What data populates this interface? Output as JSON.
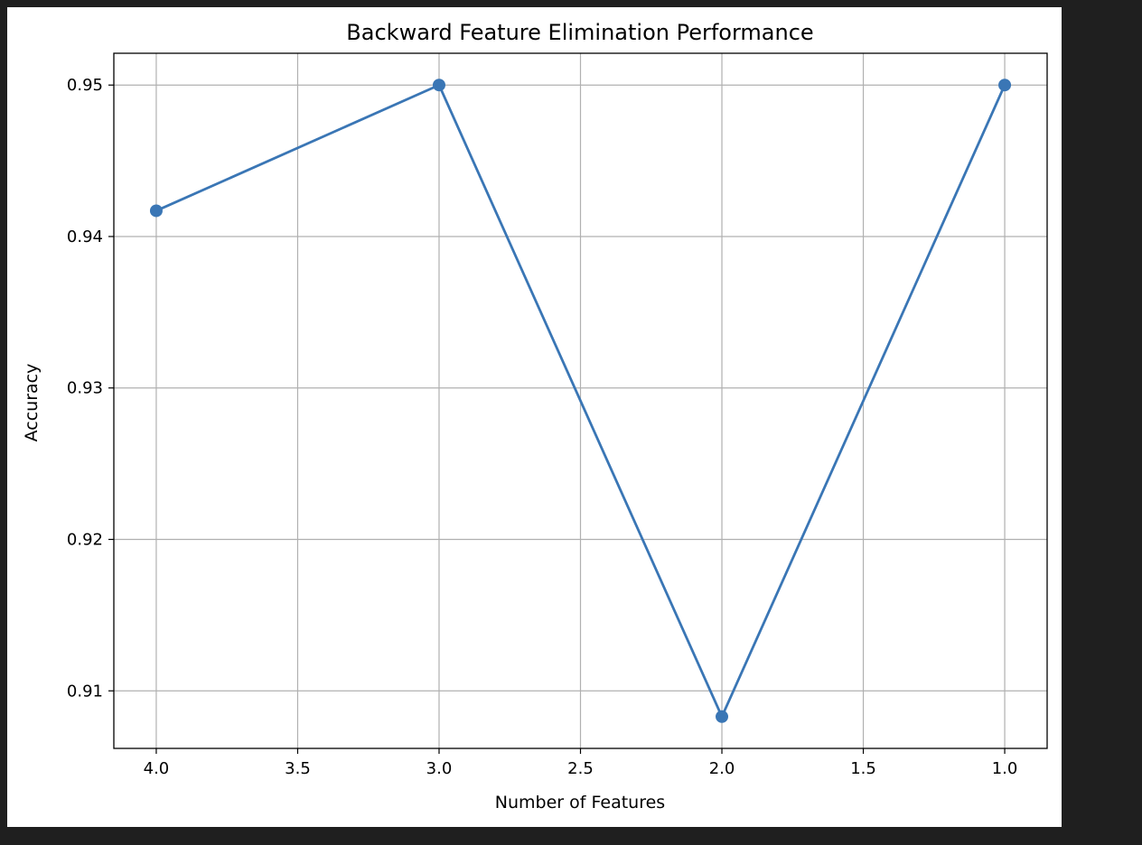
{
  "colors": {
    "background": "#1f1f1f",
    "figure": "#ffffff",
    "series": "#3a76b5",
    "grid": "#b0b0b0"
  },
  "chart_data": {
    "type": "line",
    "title": "Backward Feature Elimination Performance",
    "xlabel": "Number of Features",
    "ylabel": "Accuracy",
    "x_inverted": true,
    "xlim": [
      4.15,
      0.85
    ],
    "ylim": [
      0.9062,
      0.9521
    ],
    "grid": true,
    "marker": "circle",
    "x_ticks": [
      4.0,
      3.5,
      3.0,
      2.5,
      2.0,
      1.5,
      1.0
    ],
    "x_tick_labels": [
      "4.0",
      "3.5",
      "3.0",
      "2.5",
      "2.0",
      "1.5",
      "1.0"
    ],
    "y_ticks": [
      0.91,
      0.92,
      0.93,
      0.94,
      0.95
    ],
    "y_tick_labels": [
      "0.91",
      "0.92",
      "0.93",
      "0.94",
      "0.95"
    ],
    "series": [
      {
        "x": [
          4,
          3,
          2,
          1
        ],
        "y": [
          0.9417,
          0.95,
          0.9083,
          0.95
        ]
      }
    ]
  }
}
